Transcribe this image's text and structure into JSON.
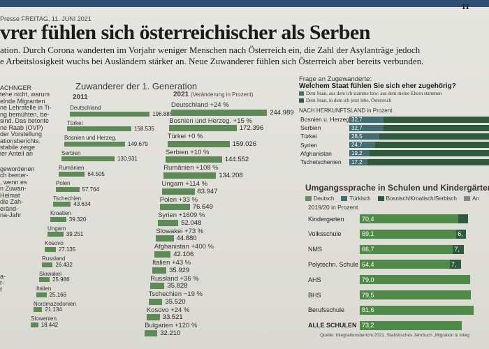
{
  "header": {
    "kicker": "Presse FREITAG, 11. JUNI 2021",
    "page_number": "11",
    "title": "vrer fühlen sich österreichischer als Serben",
    "lede": [
      "ation. Durch Corona wanderten im Vorjahr weniger Menschen nach Österreich ein, die Zahl der Asylanträge jedoch",
      "e Arbeitslosigkeit wuchs bei Ausländern stärker an. Neue Zuwanderer fühlen sich Österreich aber bereits verbunden."
    ]
  },
  "column_text": {
    "block1": [
      "ACHNGER",
      "tehe nicht, warum",
      "elnde Migranten",
      "ne Lehrstelle in Ti-",
      "ng bemühten, be-",
      "sind. Das betonte",
      "ne Raab (ÖVP)",
      "der Vorstellung",
      "ationsberichts.",
      "stabile zeige",
      "ier Anteil an"
    ],
    "block2": [
      "gewordenen",
      "ch bemer-",
      ", wenn es",
      "n Zuwan-",
      "Heimat",
      "die Zah-",
      "eränd-",
      "na-Jahr"
    ],
    "block3": [
      "a-",
      "r-",
      "f"
    ]
  },
  "colors": {
    "bar": "#5d8a55",
    "teal": "#3f6e73",
    "dark_green": "#2f5a3e",
    "legend_light": "#6d8b6a",
    "accent": "#2f4f74"
  },
  "chart_data": [
    {
      "type": "bar",
      "title": "Zuwanderer der 1. Generation",
      "subtitle": "2011",
      "categories": [
        "Deutschland",
        "Türkei",
        "Bosnien und Herzeg.",
        "Serbien",
        "Rumänien",
        "Polen",
        "Tschechien",
        "Kroatien",
        "Ungarn",
        "Kosovo",
        "Russland",
        "Slowakei",
        "Italien",
        "Nordmazedonien",
        "Slowenien"
      ],
      "values": [
        196885,
        158535,
        149679,
        130931,
        64505,
        57764,
        43634,
        39320,
        39251,
        27135,
        26432,
        25986,
        25166,
        21134,
        18442
      ],
      "display_values": [
        "196.885",
        "158.535",
        "149.679",
        "130.931",
        "64.505",
        "57.764",
        "43.634",
        "39.320",
        "39.251",
        "27.135",
        "26.432",
        "25.986",
        "25.166",
        "21.134",
        "18.442"
      ]
    },
    {
      "type": "bar",
      "title": "2021",
      "subtitle": "(Veränderung in Prozent)",
      "categories": [
        "Deutschland",
        "Bosnien und Herzeg.",
        "Türkei",
        "Serbien",
        "Rumänien",
        "Ungarn",
        "Polen",
        "Syrien",
        "Slowakei",
        "Afghanistan",
        "Italien",
        "Russland",
        "Tschechien",
        "Kosovo",
        "Bulgarien"
      ],
      "changes": [
        "+24 %",
        "+15 %",
        "+0 %",
        "+10 %",
        "+108 %",
        "+114 %",
        "+33 %",
        "+1609 %",
        "+73 %",
        "+400 %",
        "+43 %",
        "+36 %",
        "−19 %",
        "+24 %",
        "+120 %"
      ],
      "values": [
        244989,
        172396,
        159026,
        144552,
        134208,
        83947,
        76649,
        52048,
        44880,
        42106,
        35929,
        35828,
        35520,
        33521,
        32210
      ],
      "display_values": [
        "244.989",
        "172.396",
        "159.026",
        "144.552",
        "134.208",
        "83.947",
        "76.649",
        "52.048",
        "44.880",
        "42.106",
        "35.929",
        "35.828",
        "35.520",
        "33.521",
        "32.210"
      ]
    },
    {
      "type": "bar",
      "title": "Welchem Staat fühlen Sie sich eher zugehörig?",
      "subtitle": "NACH HERKUNFTSLAND in Prozent",
      "legend": [
        "Dem Staat, aus dem ich stamme bzw. aus dem meine Eltern stammen",
        "Dem Staat, in dem ich jetzt lebe, Österreich"
      ],
      "categories": [
        "Bosnien u. Herzeg.",
        "Serbien",
        "Türkei",
        "Syrien",
        "Afghanistan",
        "Tschetschenien"
      ],
      "values": [
        32.7,
        32.7,
        28.5,
        24.7,
        19.2,
        17.2
      ],
      "display_values": [
        "32,7",
        "32,7",
        "28,5",
        "24,7",
        "19,2",
        "17,2"
      ]
    },
    {
      "type": "bar",
      "title": "Umgangssprache in Schulen und Kindergärten",
      "subtitle": "2019/20 in Prozent",
      "legend": [
        "Deutsch",
        "Türkisch",
        "Bosnisch/Kroatisch/Serbisch",
        "An"
      ],
      "categories": [
        "Kindergarten",
        "Volksschule",
        "NMS",
        "Polytechn. Schule",
        "AHS",
        "BHS",
        "Berufsschule",
        "ALLE SCHULEN"
      ],
      "series": [
        {
          "name": "Deutsch",
          "values": [
            70.4,
            69.1,
            66.7,
            64.4,
            79.0,
            79.5,
            81.6,
            73.2
          ],
          "display": [
            "70,4",
            "69,1",
            "66,7",
            "64,4",
            "79,0",
            "79,5",
            "81,6",
            "73,2"
          ]
        },
        {
          "name": "Türkisch",
          "values": [
            6.0,
            6.0,
            7.0,
            7.0,
            null,
            null,
            null,
            null
          ],
          "display": [
            "",
            "6,",
            "7,",
            "7,",
            "",
            "",
            "",
            ""
          ]
        }
      ]
    }
  ],
  "labels": {
    "question_intro": "Frage an Zugewanderte:",
    "source": "Quelle: Integrationsbericht 2021, Statistisches Jahrbuch „Migration & Integ"
  }
}
